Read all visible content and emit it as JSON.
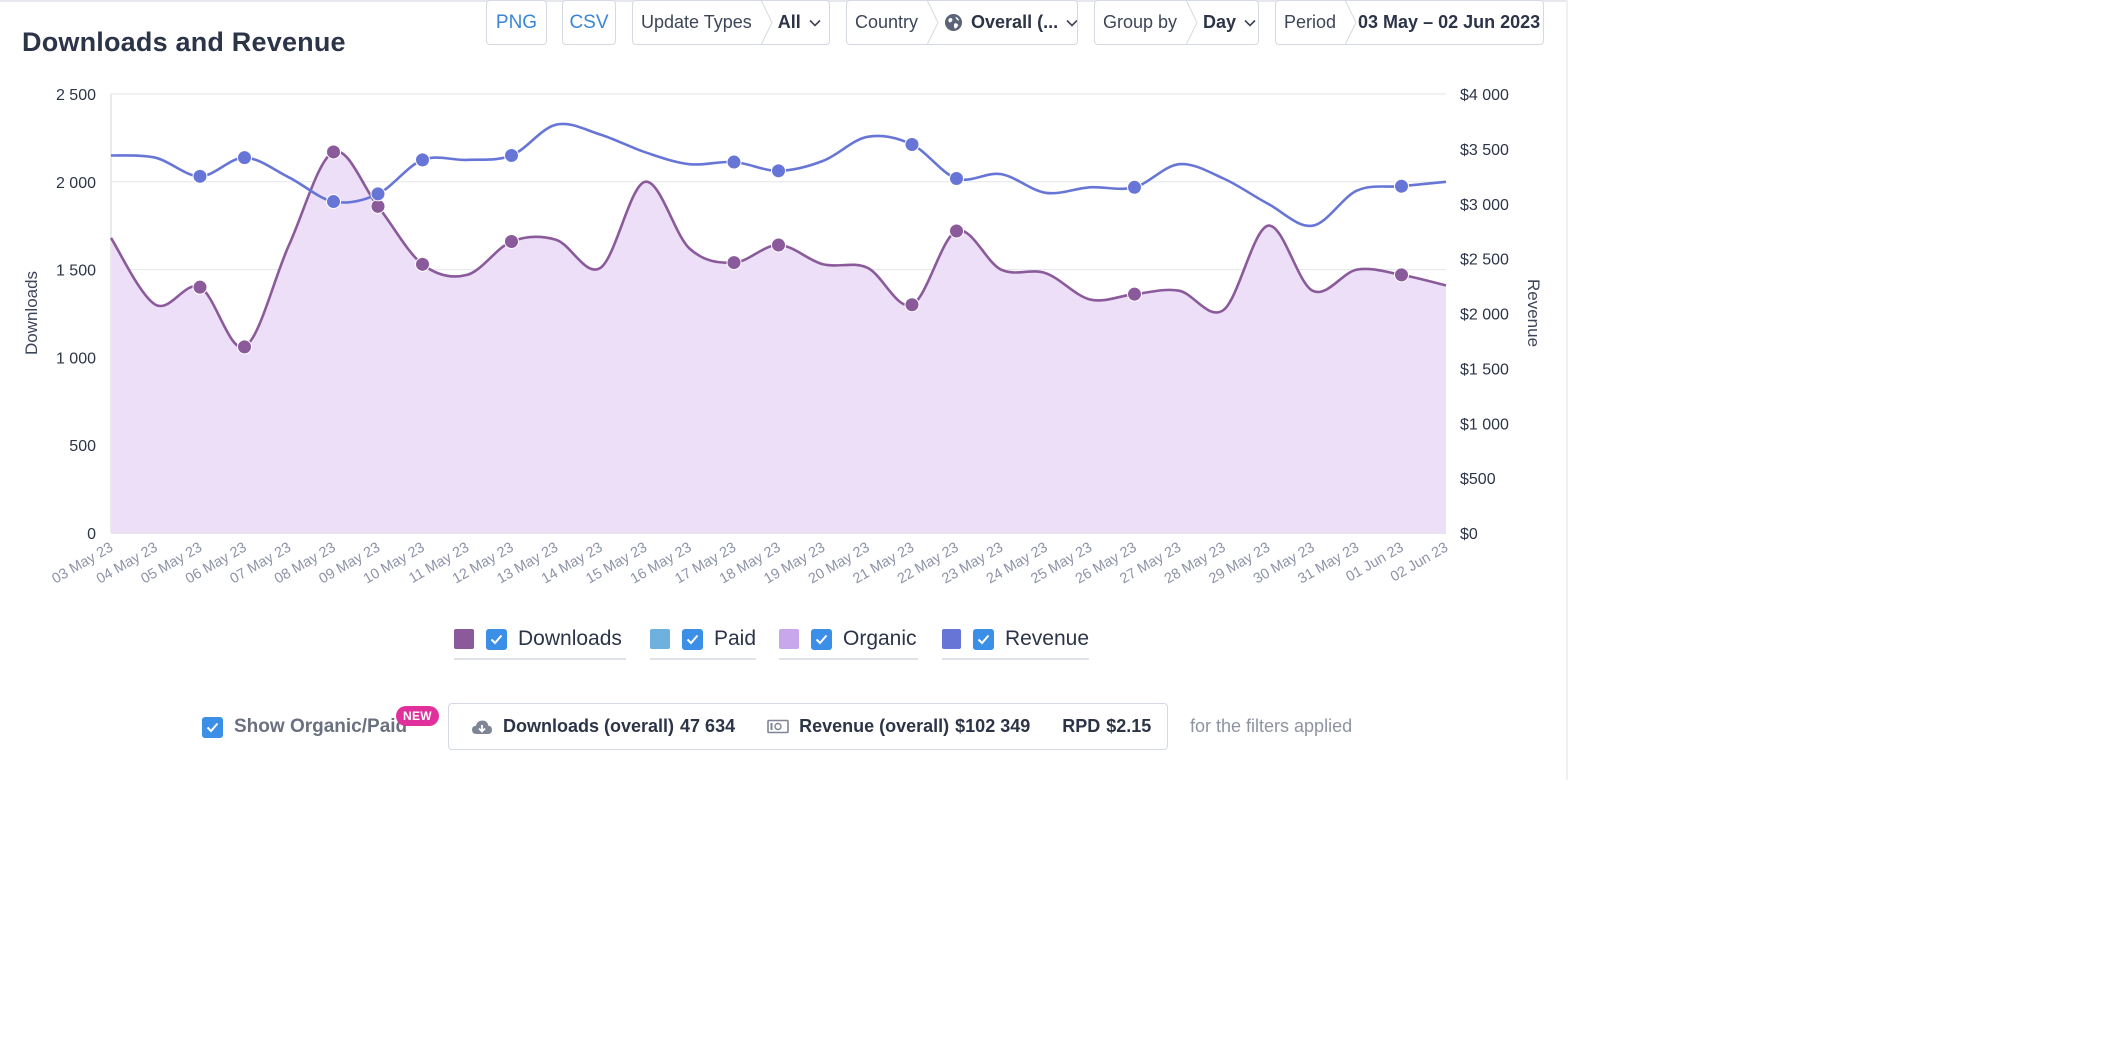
{
  "header": {
    "title": "Downloads and Revenue"
  },
  "toolbar": {
    "png_label": "PNG",
    "csv_label": "CSV",
    "update_types": {
      "label": "Update Types",
      "value": "All"
    },
    "country": {
      "label": "Country",
      "value": "Overall (..."
    },
    "group_by": {
      "label": "Group by",
      "value": "Day"
    },
    "period": {
      "label": "Period",
      "value": "03 May – 02 Jun 2023"
    }
  },
  "chart_data": {
    "type": "line",
    "xlabel": "",
    "ylabel": "Downloads",
    "y2label": "Revenue",
    "ylim": [
      0,
      2500
    ],
    "y2lim": [
      0,
      4000
    ],
    "y_ticks": [
      "0",
      "500",
      "1 000",
      "1 500",
      "2 000",
      "2 500"
    ],
    "y2_ticks": [
      "$0",
      "$500",
      "$1 000",
      "$1 500",
      "$2 000",
      "$2 500",
      "$3 000",
      "$3 500",
      "$4 000"
    ],
    "grid": true,
    "legend_position": "bottom",
    "categories": [
      "03 May 23",
      "04 May 23",
      "05 May 23",
      "06 May 23",
      "07 May 23",
      "08 May 23",
      "09 May 23",
      "10 May 23",
      "11 May 23",
      "12 May 23",
      "13 May 23",
      "14 May 23",
      "15 May 23",
      "16 May 23",
      "17 May 23",
      "18 May 23",
      "19 May 23",
      "20 May 23",
      "21 May 23",
      "22 May 23",
      "23 May 23",
      "24 May 23",
      "25 May 23",
      "26 May 23",
      "27 May 23",
      "28 May 23",
      "29 May 23",
      "30 May 23",
      "31 May 23",
      "01 Jun 23",
      "02 Jun 23"
    ],
    "series": [
      {
        "name": "Downloads",
        "axis": "left",
        "area": true,
        "values": [
          1680,
          1300,
          1400,
          1060,
          1640,
          2170,
          1860,
          1530,
          1470,
          1660,
          1670,
          1510,
          2000,
          1620,
          1540,
          1640,
          1530,
          1510,
          1300,
          1720,
          1500,
          1480,
          1330,
          1360,
          1380,
          1270,
          1750,
          1380,
          1500,
          1470,
          1410
        ]
      },
      {
        "name": "Revenue",
        "axis": "right",
        "values": [
          3440,
          3420,
          3250,
          3420,
          3240,
          3020,
          3090,
          3400,
          3400,
          3440,
          3720,
          3630,
          3470,
          3360,
          3380,
          3300,
          3390,
          3610,
          3540,
          3230,
          3270,
          3100,
          3150,
          3150,
          3360,
          3230,
          3000,
          2800,
          3120,
          3160,
          3200
        ]
      }
    ],
    "markers": {
      "Downloads": [
        2,
        3,
        5,
        6,
        7,
        9,
        14,
        15,
        18,
        19,
        23,
        29
      ],
      "Revenue": [
        2,
        3,
        5,
        6,
        7,
        9,
        14,
        15,
        18,
        19,
        23,
        29
      ]
    }
  },
  "legend": {
    "items": [
      {
        "label": "Downloads",
        "color": "#8a5a9a"
      },
      {
        "label": "Paid",
        "color": "#6fb1de"
      },
      {
        "label": "Organic",
        "color": "#c9a7ec"
      },
      {
        "label": "Revenue",
        "color": "#6776d6"
      }
    ]
  },
  "footer": {
    "show_organic_paid": "Show Organic/Paid",
    "new_badge": "NEW",
    "downloads_label": "Downloads (overall)",
    "downloads_value": "47 634",
    "revenue_label": "Revenue (overall)",
    "revenue_value": "$102 349",
    "rpd_label": "RPD",
    "rpd_value": "$2.15",
    "filters_note": "for the filters applied"
  },
  "colors": {
    "accent": "#3b8fe6",
    "downloads_line": "#8a5a9a",
    "downloads_fill": "#ecdff7",
    "revenue_line": "#6776d6",
    "badge": "#e0309b"
  },
  "icons": [
    "globe-icon",
    "chevron-down-icon",
    "cloud-download-icon",
    "banknote-icon",
    "checkbox-checked-icon"
  ]
}
